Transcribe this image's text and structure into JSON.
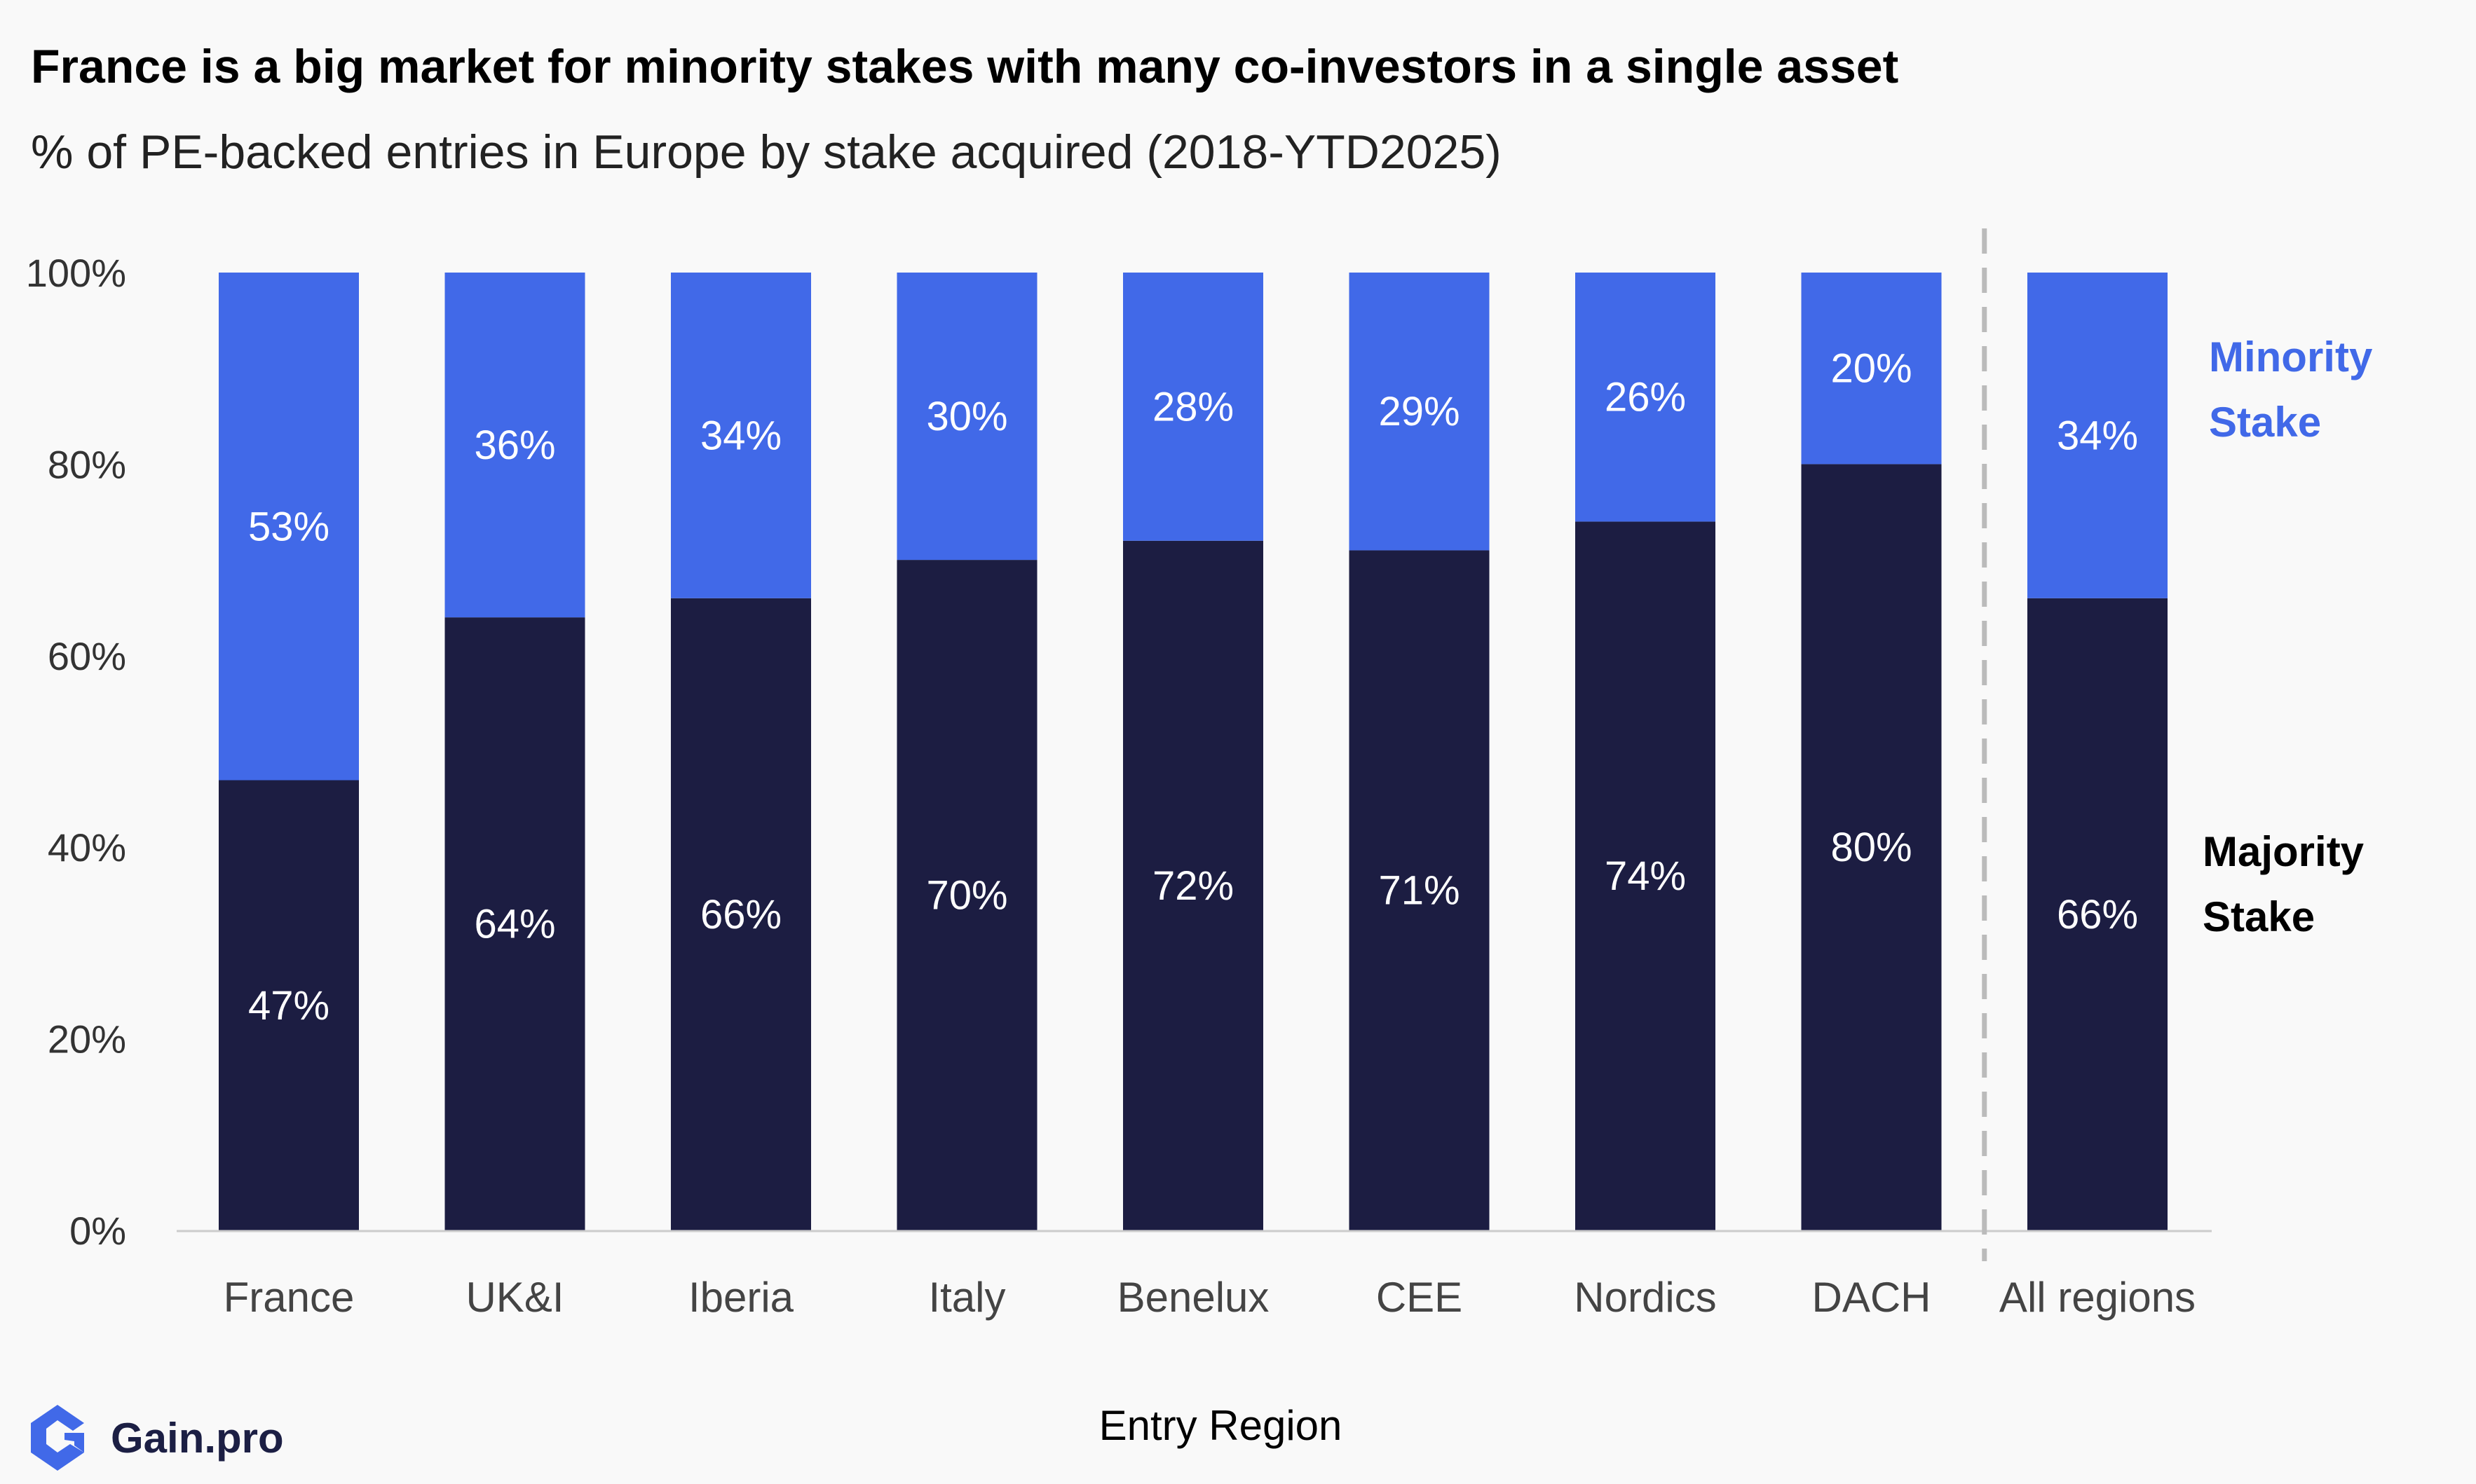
{
  "title": "France is a big market for minority stakes with many co-investors in a single asset",
  "subtitle": "% of PE-backed entries in Europe by stake acquired (2018-YTD2025)",
  "brand": {
    "name": "Gain.pro",
    "logo_icon": "gain-pro-logo-icon",
    "color": "#4169e8"
  },
  "colors": {
    "majority": "#1c1d42",
    "minority": "#4169e8",
    "axis": "#cccccc",
    "separator": "#bbbbbb"
  },
  "legend": {
    "minority": [
      "Minority",
      "Stake"
    ],
    "majority": [
      "Majority",
      "Stake"
    ],
    "placement": "right"
  },
  "chart_data": {
    "type": "bar",
    "stacked": true,
    "categories": [
      "France",
      "UK&I",
      "Iberia",
      "Italy",
      "Benelux",
      "CEE",
      "Nordics",
      "DACH",
      "All regions"
    ],
    "series": [
      {
        "name": "Majority Stake",
        "values": [
          47,
          64,
          66,
          70,
          72,
          71,
          74,
          80,
          66
        ],
        "labels": [
          "47%",
          "64%",
          "66%",
          "70%",
          "72%",
          "71%",
          "74%",
          "80%",
          "66%"
        ]
      },
      {
        "name": "Minority Stake",
        "values": [
          53,
          36,
          34,
          30,
          28,
          29,
          26,
          20,
          34
        ],
        "labels": [
          "53%",
          "36%",
          "34%",
          "30%",
          "28%",
          "29%",
          "26%",
          "20%",
          "34%"
        ]
      }
    ],
    "xlabel": "Entry Region",
    "ylabel": "",
    "ylim": [
      0,
      100
    ],
    "yticks": [
      "0%",
      "20%",
      "40%",
      "60%",
      "80%",
      "100%"
    ],
    "grid": false,
    "separator_before": "All regions"
  }
}
